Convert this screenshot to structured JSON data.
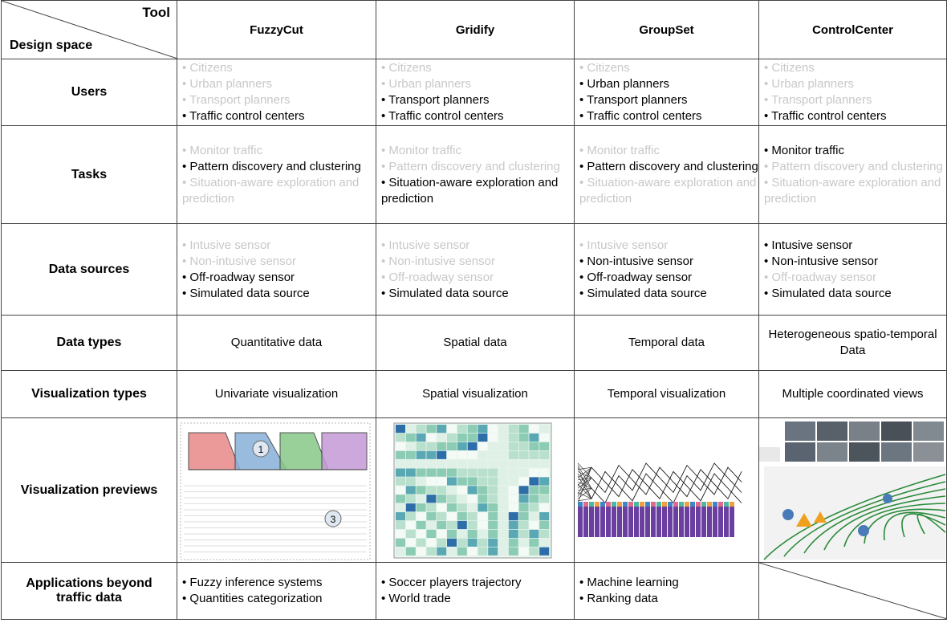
{
  "header": {
    "corner_top": "Tool",
    "corner_bottom": "Design space",
    "tools": [
      "FuzzyCut",
      "Gridify",
      "GroupSet",
      "ControlCenter"
    ]
  },
  "rows": [
    {
      "label": "Users",
      "cells": [
        [
          {
            "text": "• Citizens",
            "color": "#c8c8c8"
          },
          {
            "text": "• Urban planners",
            "color": "#c8c8c8"
          },
          {
            "text": "• Transport planners",
            "color": "#c8c8c8"
          },
          {
            "text": "• Traffic control centers",
            "color": "#000000"
          }
        ],
        [
          {
            "text": "• Citizens",
            "color": "#c8c8c8"
          },
          {
            "text": "• Urban planners",
            "color": "#c8c8c8"
          },
          {
            "text": "• Transport planners",
            "color": "#000000"
          },
          {
            "text": "• Traffic control centers",
            "color": "#000000"
          }
        ],
        [
          {
            "text": "• Citizens",
            "color": "#c8c8c8"
          },
          {
            "text": "• Urban planners",
            "color": "#000000"
          },
          {
            "text": "• Transport planners",
            "color": "#000000"
          },
          {
            "text": "• Traffic control centers",
            "color": "#000000"
          }
        ],
        [
          {
            "text": "• Citizens",
            "color": "#c8c8c8"
          },
          {
            "text": "• Urban planners",
            "color": "#c8c8c8"
          },
          {
            "text": "• Transport planners",
            "color": "#c8c8c8"
          },
          {
            "text": "• Traffic control centers",
            "color": "#000000"
          }
        ]
      ]
    },
    {
      "label": "Tasks",
      "cells": [
        [
          {
            "text": "• Monitor traffic",
            "color": "#c8c8c8"
          },
          {
            "text": "• Pattern discovery and clustering",
            "color": "#000000"
          },
          {
            "text": "• Situation-aware exploration and prediction",
            "color": "#c8c8c8"
          }
        ],
        [
          {
            "text": "• Monitor traffic",
            "color": "#c8c8c8"
          },
          {
            "text": "• Pattern discovery and clustering",
            "color": "#c8c8c8"
          },
          {
            "text": "• Situation-aware exploration and prediction",
            "color": "#000000"
          }
        ],
        [
          {
            "text": "• Monitor traffic",
            "color": "#c8c8c8"
          },
          {
            "text": "• Pattern discovery and clustering",
            "color": "#000000"
          },
          {
            "text": "• Situation-aware exploration and prediction",
            "color": "#c8c8c8"
          }
        ],
        [
          {
            "text": "• Monitor traffic",
            "color": "#000000"
          },
          {
            "text": "• Pattern discovery and clustering",
            "color": "#c8c8c8"
          },
          {
            "text": "• Situation-aware exploration and prediction",
            "color": "#c8c8c8"
          }
        ]
      ]
    },
    {
      "label": "Data sources",
      "cells": [
        [
          {
            "text": "• Intusive sensor",
            "color": "#c8c8c8"
          },
          {
            "text": "• Non-intusive sensor",
            "color": "#c8c8c8"
          },
          {
            "text": "• Off-roadway sensor",
            "color": "#000000"
          },
          {
            "text": "• Simulated data source",
            "color": "#000000"
          }
        ],
        [
          {
            "text": "• Intusive sensor",
            "color": "#c8c8c8"
          },
          {
            "text": "• Non-intusive sensor",
            "color": "#c8c8c8"
          },
          {
            "text": "• Off-roadway sensor",
            "color": "#c8c8c8"
          },
          {
            "text": "• Simulated data source",
            "color": "#000000"
          }
        ],
        [
          {
            "text": "• Intusive sensor",
            "color": "#c8c8c8"
          },
          {
            "text": "• Non-intusive sensor",
            "color": "#000000"
          },
          {
            "text": "• Off-roadway sensor",
            "color": "#000000"
          },
          {
            "text": "• Simulated data source",
            "color": "#000000"
          }
        ],
        [
          {
            "text": "• Intusive sensor",
            "color": "#000000"
          },
          {
            "text": "• Non-intusive sensor",
            "color": "#000000"
          },
          {
            "text": "• Off-roadway sensor",
            "color": "#c8c8c8"
          },
          {
            "text": "• Simulated data source",
            "color": "#000000"
          }
        ]
      ]
    },
    {
      "label": "Data types",
      "cells": [
        "Quantitative data",
        "Spatial data",
        "Temporal data",
        "Heterogeneous spatio-temporal Data"
      ]
    },
    {
      "label": "Visualization types",
      "cells": [
        "Univariate visualization",
        "Spatial visualization",
        "Temporal visualization",
        "Multiple coordinated views"
      ]
    },
    {
      "label": "Visualization previews",
      "annotations": [
        "1",
        "3"
      ]
    },
    {
      "label": "Applications beyond traffic data",
      "cells": [
        [
          {
            "text": "• Fuzzy inference systems",
            "color": "#000000"
          },
          {
            "text": "• Quantities categorization",
            "color": "#000000"
          }
        ],
        [
          {
            "text": "• Soccer players trajectory",
            "color": "#000000"
          },
          {
            "text": "• World trade",
            "color": "#000000"
          }
        ],
        [
          {
            "text": "• Machine learning",
            "color": "#000000"
          },
          {
            "text": "• Ranking data",
            "color": "#000000"
          }
        ],
        null
      ]
    }
  ]
}
